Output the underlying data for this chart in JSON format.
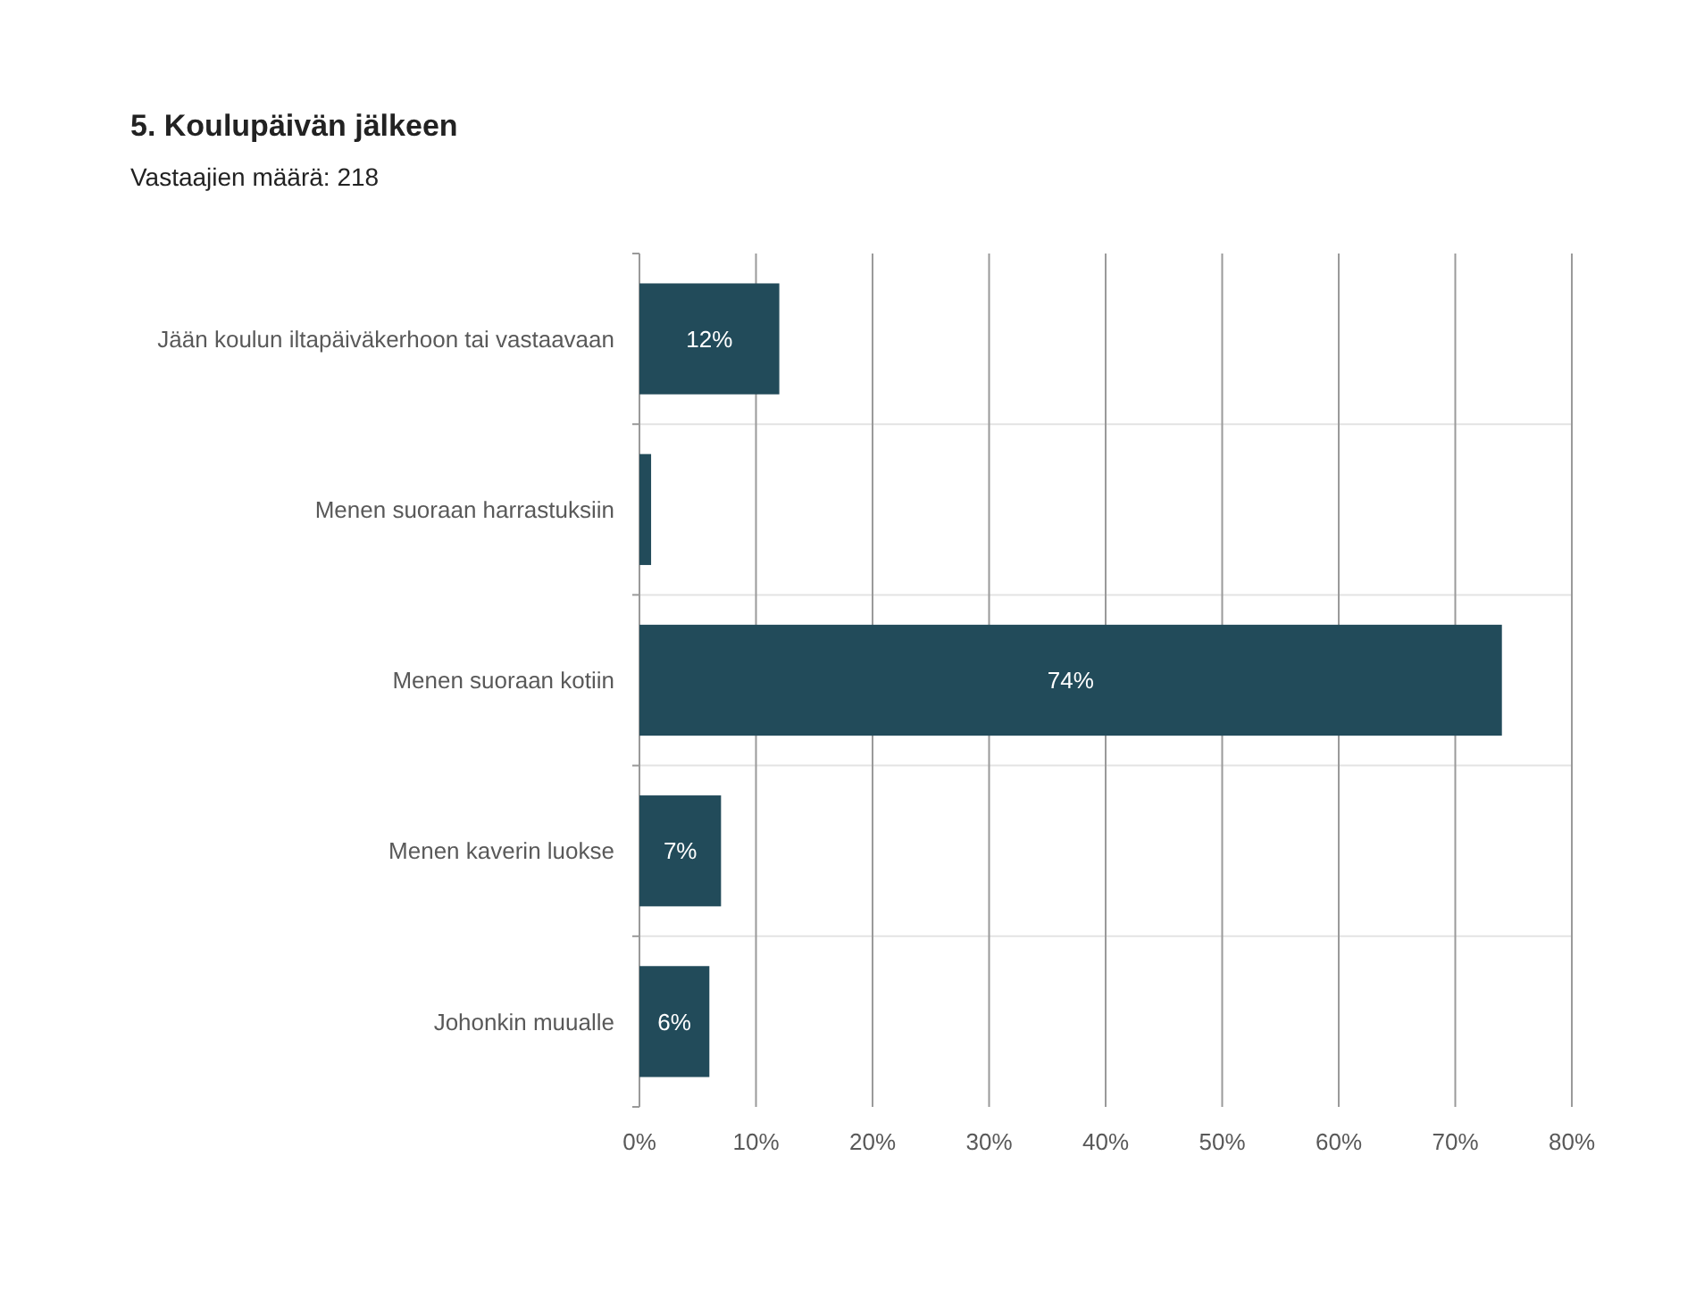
{
  "chart_data": {
    "type": "bar",
    "orientation": "horizontal",
    "title": "5. Koulupäivän jälkeen",
    "subtitle": "Vastaajien määrä: 218",
    "categories": [
      "Jään koulun iltapäiväkerhoon tai vastaavaan",
      "Menen suoraan harrastuksiin",
      "Menen suoraan kotiin",
      "Menen kaverin luokse",
      "Johonkin muualle"
    ],
    "values": [
      12,
      1,
      74,
      7,
      6
    ],
    "value_labels": [
      "12%",
      null,
      "74%",
      "7%",
      "6%"
    ],
    "color": "#224b5a",
    "xlim": [
      0,
      80
    ],
    "xticks": [
      {
        "value": 0,
        "label": "0%"
      },
      {
        "value": 10,
        "label": "10%"
      },
      {
        "value": 20,
        "label": "20%"
      },
      {
        "value": 30,
        "label": "30%"
      },
      {
        "value": 40,
        "label": "40%"
      },
      {
        "value": 50,
        "label": "50%"
      },
      {
        "value": 60,
        "label": "60%"
      },
      {
        "value": 70,
        "label": "70%"
      },
      {
        "value": 80,
        "label": "80%"
      }
    ],
    "grid": true
  }
}
